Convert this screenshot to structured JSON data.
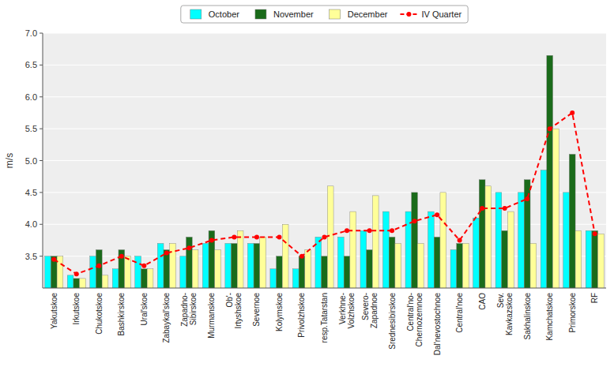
{
  "chart_data": {
    "type": "bar",
    "y_label": "m/s",
    "categories": [
      "Yakutskoe",
      "Irkutskoe",
      "Chukotskoe",
      "Bashkirskoe",
      "Ural'skoe",
      "Zabaykal'skoe",
      "Zapadno-\nSibirskoe",
      "Murmanskoe",
      "Ob'-\nIrtyshskoe",
      "Severnoe",
      "Kolymskoe",
      "Privolzhskoe",
      "resp.Tatarstan",
      "Verkhnе-\nVolzhskoe",
      "Severo-\nZapadnoe",
      "Srednesibirskoe",
      "Central'no-\nChernozemnoe",
      "Dal'nevostochnoe",
      "Central'noe",
      "CAO",
      "Sev.\nKavkazskoe",
      "Sakhalinskoe",
      "Kamchatskoe",
      "Primorskoe",
      "RF"
    ],
    "series": [
      {
        "name": "October",
        "color": "#00FFFF",
        "values": [
          3.5,
          3.2,
          3.5,
          3.3,
          3.5,
          3.7,
          3.5,
          3.7,
          3.7,
          3.7,
          3.3,
          3.3,
          3.8,
          3.8,
          3.9,
          4.2,
          4.2,
          4.2,
          3.6,
          4.1,
          4.5,
          4.5,
          4.85,
          4.5,
          3.9
        ]
      },
      {
        "name": "November",
        "color": "#1A6B1A",
        "values": [
          3.5,
          3.15,
          3.6,
          3.6,
          3.3,
          3.6,
          3.8,
          3.9,
          3.7,
          3.7,
          3.5,
          3.5,
          3.5,
          3.5,
          3.6,
          3.8,
          4.5,
          3.8,
          3.7,
          4.7,
          3.9,
          4.7,
          6.65,
          5.1,
          3.9
        ]
      },
      {
        "name": "December",
        "color": "#FFFF99",
        "values": [
          3.5,
          3.15,
          3.2,
          3.5,
          3.3,
          3.7,
          3.6,
          3.6,
          3.9,
          3.8,
          4.0,
          3.6,
          4.6,
          4.2,
          4.45,
          3.7,
          3.7,
          4.5,
          3.7,
          4.6,
          4.2,
          3.7,
          5.5,
          3.9,
          3.85
        ]
      },
      {
        "name": "IV Quarter",
        "type": "line",
        "color": "#FF0000",
        "marker": "circle",
        "line_style": "dashed",
        "values": [
          3.45,
          3.22,
          3.35,
          3.5,
          3.35,
          3.55,
          3.63,
          3.75,
          3.8,
          3.8,
          3.8,
          3.5,
          3.8,
          3.9,
          3.9,
          3.9,
          4.05,
          4.15,
          3.75,
          4.25,
          4.25,
          4.4,
          5.5,
          5.75,
          3.85
        ]
      }
    ],
    "ylim": [
      3.0,
      7.0
    ],
    "yticks": [
      3.5,
      {
        "value": 4.0,
        "label": "4.0"
      },
      4.5,
      {
        "value": 5.0,
        "label": "5.0"
      },
      5.5,
      {
        "value": 6.0,
        "label": "6.0"
      },
      6.5,
      {
        "value": 7.0,
        "label": "7.0"
      }
    ],
    "grid": true,
    "legend": "top"
  }
}
